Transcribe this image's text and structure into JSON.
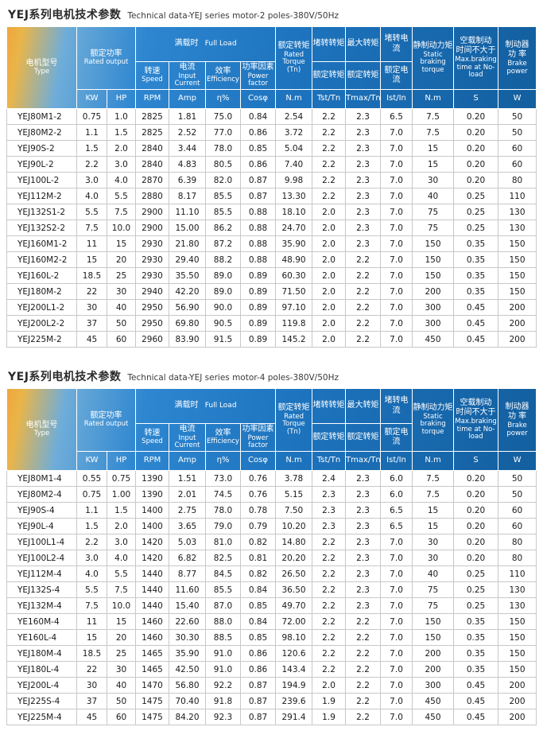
{
  "colors": {
    "header_blue": "#2e86d0",
    "header_blue_dark": "#135f9f",
    "header_accent_orange": "#f0a63c",
    "header_text": "#ffffff",
    "body_text": "#1a1a1a",
    "grid_border": "#c8c8c8"
  },
  "hdr": {
    "type_cn": "电机型号",
    "type_en": "Type",
    "rated_output_cn": "额定功率",
    "rated_output_en": "Rated output",
    "full_load_cn": "满载时",
    "full_load_en": "Full Load",
    "speed_cn": "转速",
    "speed_en": "Speed",
    "current_cn": "电流",
    "current_en": "Input Current",
    "efficiency_cn": "效率",
    "efficiency_en": "Efficiency",
    "pf_cn": "功率因素",
    "pf_en": "Power factor",
    "rated_torque_cn": "额定转矩",
    "rated_torque_en": "Rated Torque (Tn)",
    "lrt_cn": "堵转转矩",
    "lrt_den": "额定转矩",
    "bdt_cn": "最大转矩",
    "bdt_den": "额定转矩",
    "lrc_cn": "堵转电流",
    "lrc_den": "额定电流",
    "static_cn": "静制动力矩",
    "static_en": "Static braking torque",
    "time_cn1": "空载制动",
    "time_cn2": "时间不大于",
    "time_en": "Max.braking time at No-load",
    "brake_cn1": "制动器",
    "brake_cn2": "功 率",
    "brake_en": "Brake power",
    "units": [
      "KW",
      "HP",
      "RPM",
      "Amp",
      "η%",
      "Cosφ",
      "N.m",
      "Tst/Tn",
      "Tmax/Tn",
      "Ist/In",
      "N.m",
      "S",
      "W"
    ]
  },
  "tables": [
    {
      "title_cn": "YEJ系列电机技术参数",
      "title_en": "Technical data-YEJ series motor-2 poles-380V/50Hz",
      "rows": [
        [
          "YEJ80M1-2",
          "0.75",
          "1.0",
          "2825",
          "1.81",
          "75.0",
          "0.84",
          "2.54",
          "2.2",
          "2.3",
          "6.5",
          "7.5",
          "0.20",
          "50"
        ],
        [
          "YEJ80M2-2",
          "1.1",
          "1.5",
          "2825",
          "2.52",
          "77.0",
          "0.86",
          "3.72",
          "2.2",
          "2.3",
          "7.0",
          "7.5",
          "0.20",
          "50"
        ],
        [
          "YEJ90S-2",
          "1.5",
          "2.0",
          "2840",
          "3.44",
          "78.0",
          "0.85",
          "5.04",
          "2.2",
          "2.3",
          "7.0",
          "15",
          "0.20",
          "60"
        ],
        [
          "YEJ90L-2",
          "2.2",
          "3.0",
          "2840",
          "4.83",
          "80.5",
          "0.86",
          "7.40",
          "2.2",
          "2.3",
          "7.0",
          "15",
          "0.20",
          "60"
        ],
        [
          "YEJ100L-2",
          "3.0",
          "4.0",
          "2870",
          "6.39",
          "82.0",
          "0.87",
          "9.98",
          "2.2",
          "2.3",
          "7.0",
          "30",
          "0.20",
          "80"
        ],
        [
          "YEJ112M-2",
          "4.0",
          "5.5",
          "2880",
          "8.17",
          "85.5",
          "0.87",
          "13.30",
          "2.2",
          "2.3",
          "7.0",
          "40",
          "0.25",
          "110"
        ],
        [
          "YEJ132S1-2",
          "5.5",
          "7.5",
          "2900",
          "11.10",
          "85.5",
          "0.88",
          "18.10",
          "2.0",
          "2.3",
          "7.0",
          "75",
          "0.25",
          "130"
        ],
        [
          "YEJ132S2-2",
          "7.5",
          "10.0",
          "2900",
          "15.00",
          "86.2",
          "0.88",
          "24.70",
          "2.0",
          "2.3",
          "7.0",
          "75",
          "0.25",
          "130"
        ],
        [
          "YEJ160M1-2",
          "11",
          "15",
          "2930",
          "21.80",
          "87.2",
          "0.88",
          "35.90",
          "2.0",
          "2.3",
          "7.0",
          "150",
          "0.35",
          "150"
        ],
        [
          "YEJ160M2-2",
          "15",
          "20",
          "2930",
          "29.40",
          "88.2",
          "0.88",
          "48.90",
          "2.0",
          "2.2",
          "7.0",
          "150",
          "0.35",
          "150"
        ],
        [
          "YEJ160L-2",
          "18.5",
          "25",
          "2930",
          "35.50",
          "89.0",
          "0.89",
          "60.30",
          "2.0",
          "2.2",
          "7.0",
          "150",
          "0.35",
          "150"
        ],
        [
          "YEJ180M-2",
          "22",
          "30",
          "2940",
          "42.20",
          "89.0",
          "0.89",
          "71.50",
          "2.0",
          "2.2",
          "7.0",
          "200",
          "0.35",
          "150"
        ],
        [
          "YEJ200L1-2",
          "30",
          "40",
          "2950",
          "56.90",
          "90.0",
          "0.89",
          "97.10",
          "2.0",
          "2.2",
          "7.0",
          "300",
          "0.45",
          "200"
        ],
        [
          "YEJ200L2-2",
          "37",
          "50",
          "2950",
          "69.80",
          "90.5",
          "0.89",
          "119.8",
          "2.0",
          "2.2",
          "7.0",
          "300",
          "0.45",
          "200"
        ],
        [
          "YEJ225M-2",
          "45",
          "60",
          "2960",
          "83.90",
          "91.5",
          "0.89",
          "145.2",
          "2.0",
          "2.2",
          "7.0",
          "450",
          "0.45",
          "200"
        ]
      ]
    },
    {
      "title_cn": "YEJ系列电机技术参数",
      "title_en": "Technical data-YEJ series motor-4 poles-380V/50Hz",
      "rows": [
        [
          "YEJ80M1-4",
          "0.55",
          "0.75",
          "1390",
          "1.51",
          "73.0",
          "0.76",
          "3.78",
          "2.4",
          "2.3",
          "6.0",
          "7.5",
          "0.20",
          "50"
        ],
        [
          "YEJ80M2-4",
          "0.75",
          "1.00",
          "1390",
          "2.01",
          "74.5",
          "0.76",
          "5.15",
          "2.3",
          "2.3",
          "6.0",
          "7.5",
          "0.20",
          "50"
        ],
        [
          "YEJ90S-4",
          "1.1",
          "1.5",
          "1400",
          "2.75",
          "78.0",
          "0.78",
          "7.50",
          "2.3",
          "2.3",
          "6.5",
          "15",
          "0.20",
          "60"
        ],
        [
          "YEJ90L-4",
          "1.5",
          "2.0",
          "1400",
          "3.65",
          "79.0",
          "0.79",
          "10.20",
          "2.3",
          "2.3",
          "6.5",
          "15",
          "0.20",
          "60"
        ],
        [
          "YEJ100L1-4",
          "2.2",
          "3.0",
          "1420",
          "5.03",
          "81.0",
          "0.82",
          "14.80",
          "2.2",
          "2.3",
          "7.0",
          "30",
          "0.20",
          "80"
        ],
        [
          "YEJ100L2-4",
          "3.0",
          "4.0",
          "1420",
          "6.82",
          "82.5",
          "0.81",
          "20.20",
          "2.2",
          "2.3",
          "7.0",
          "30",
          "0.20",
          "80"
        ],
        [
          "YEJ112M-4",
          "4.0",
          "5.5",
          "1440",
          "8.77",
          "84.5",
          "0.82",
          "26.50",
          "2.2",
          "2.3",
          "7.0",
          "40",
          "0.25",
          "110"
        ],
        [
          "YEJ132S-4",
          "5.5",
          "7.5",
          "1440",
          "11.60",
          "85.5",
          "0.84",
          "36.50",
          "2.2",
          "2.3",
          "7.0",
          "75",
          "0.25",
          "130"
        ],
        [
          "YEJ132M-4",
          "7.5",
          "10.0",
          "1440",
          "15.40",
          "87.0",
          "0.85",
          "49.70",
          "2.2",
          "2.3",
          "7.0",
          "75",
          "0.25",
          "130"
        ],
        [
          "YE160M-4",
          "11",
          "15",
          "1460",
          "22.60",
          "88.0",
          "0.84",
          "72.00",
          "2.2",
          "2.2",
          "7.0",
          "150",
          "0.35",
          "150"
        ],
        [
          "YE160L-4",
          "15",
          "20",
          "1460",
          "30.30",
          "88.5",
          "0.85",
          "98.10",
          "2.2",
          "2.2",
          "7.0",
          "150",
          "0.35",
          "150"
        ],
        [
          "YEJ180M-4",
          "18.5",
          "25",
          "1465",
          "35.90",
          "91.0",
          "0.86",
          "120.6",
          "2.2",
          "2.2",
          "7.0",
          "200",
          "0.35",
          "150"
        ],
        [
          "YEJ180L-4",
          "22",
          "30",
          "1465",
          "42.50",
          "91.0",
          "0.86",
          "143.4",
          "2.2",
          "2.2",
          "7.0",
          "200",
          "0.35",
          "150"
        ],
        [
          "YEJ200L-4",
          "30",
          "40",
          "1470",
          "56.80",
          "92.2",
          "0.87",
          "194.9",
          "2.0",
          "2.2",
          "7.0",
          "300",
          "0.45",
          "200"
        ],
        [
          "YEJ225S-4",
          "37",
          "50",
          "1475",
          "70.40",
          "91.8",
          "0.87",
          "239.6",
          "1.9",
          "2.2",
          "7.0",
          "450",
          "0.45",
          "200"
        ],
        [
          "YEJ225M-4",
          "45",
          "60",
          "1475",
          "84.20",
          "92.3",
          "0.87",
          "291.4",
          "1.9",
          "2.2",
          "7.0",
          "450",
          "0.45",
          "200"
        ]
      ]
    }
  ]
}
